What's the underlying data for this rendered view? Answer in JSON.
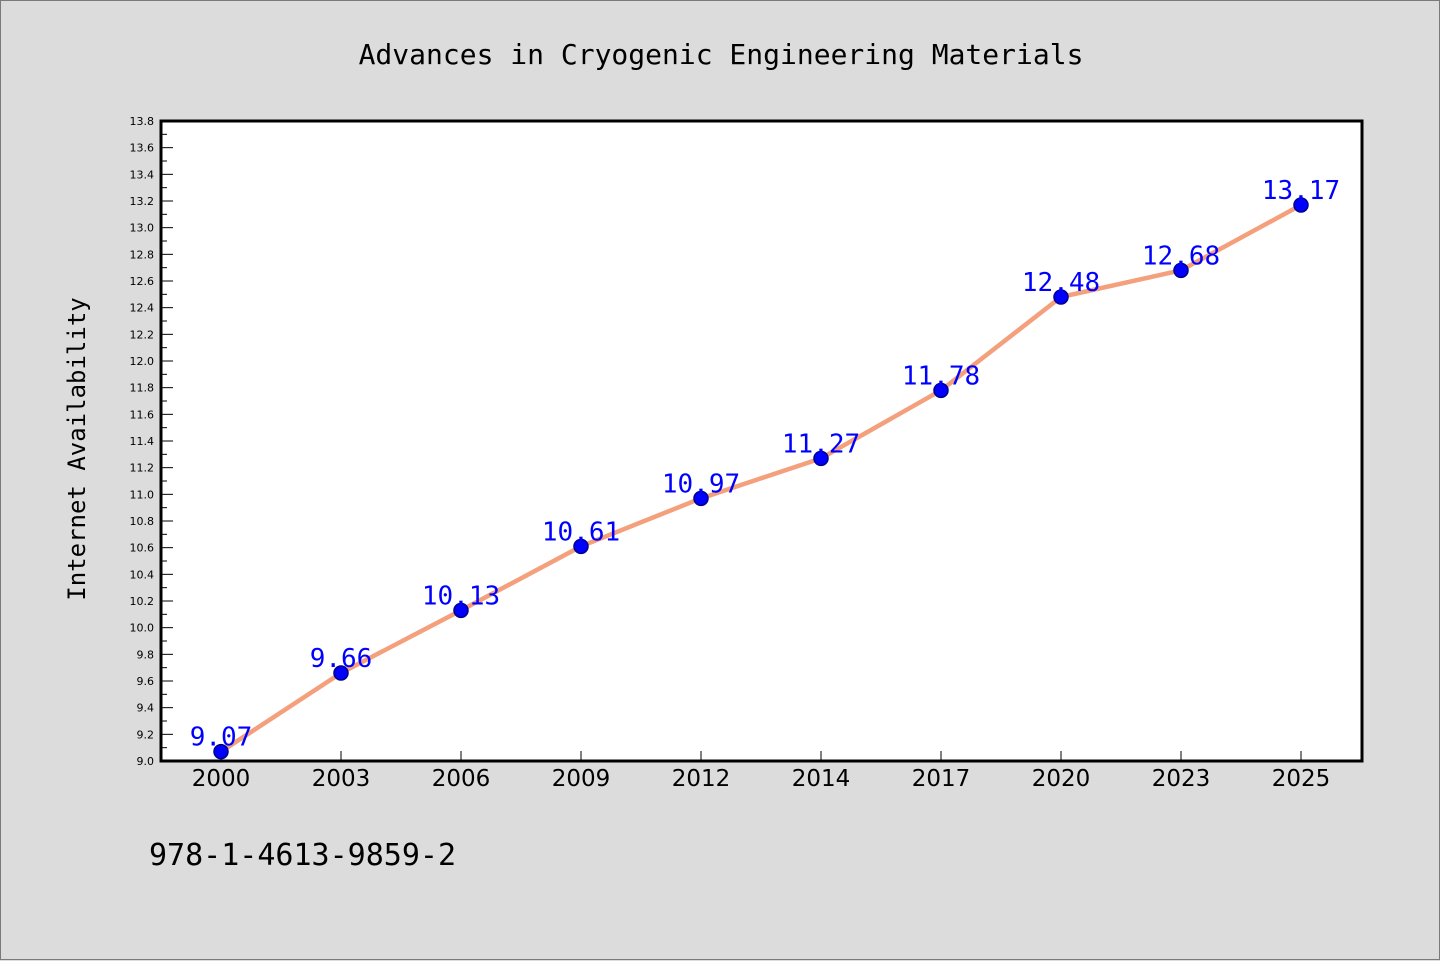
{
  "chart_data": {
    "type": "line",
    "title": "Advances in Cryogenic Engineering Materials",
    "xlabel": "",
    "ylabel": "Internet Availability",
    "categories": [
      "2000",
      "2003",
      "2006",
      "2009",
      "2012",
      "2014",
      "2017",
      "2020",
      "2023",
      "2025"
    ],
    "series": [
      {
        "values": [
          9.07,
          9.66,
          10.13,
          10.61,
          10.97,
          11.27,
          11.78,
          12.48,
          12.68,
          13.17
        ],
        "data_labels": [
          "9.07",
          "9.66",
          "10.13",
          "10.61",
          "10.97",
          "11.27",
          "11.78",
          "12.48",
          "12.68",
          "13.17"
        ]
      }
    ],
    "ylim": [
      9.0,
      13.8
    ],
    "yticks": [
      "9.0",
      "9.2",
      "9.4",
      "9.6",
      "9.8",
      "10.0",
      "10.2",
      "10.4",
      "10.6",
      "10.8",
      "11.0",
      "11.2",
      "11.4",
      "11.6",
      "11.8",
      "12.0",
      "12.2",
      "12.4",
      "12.6",
      "12.8",
      "13.0",
      "13.2",
      "13.4",
      "13.6",
      "13.8"
    ],
    "grid": false,
    "legend": "none",
    "colors": {
      "line": "#f4a07c",
      "marker": "#0000ff",
      "marker_edge": "#00008b",
      "data_label": "#0000ff",
      "plot_background": "#ffffff",
      "page_background": "#dcdcdc"
    }
  },
  "footer": {
    "isbn": "978-1-4613-9859-2"
  }
}
